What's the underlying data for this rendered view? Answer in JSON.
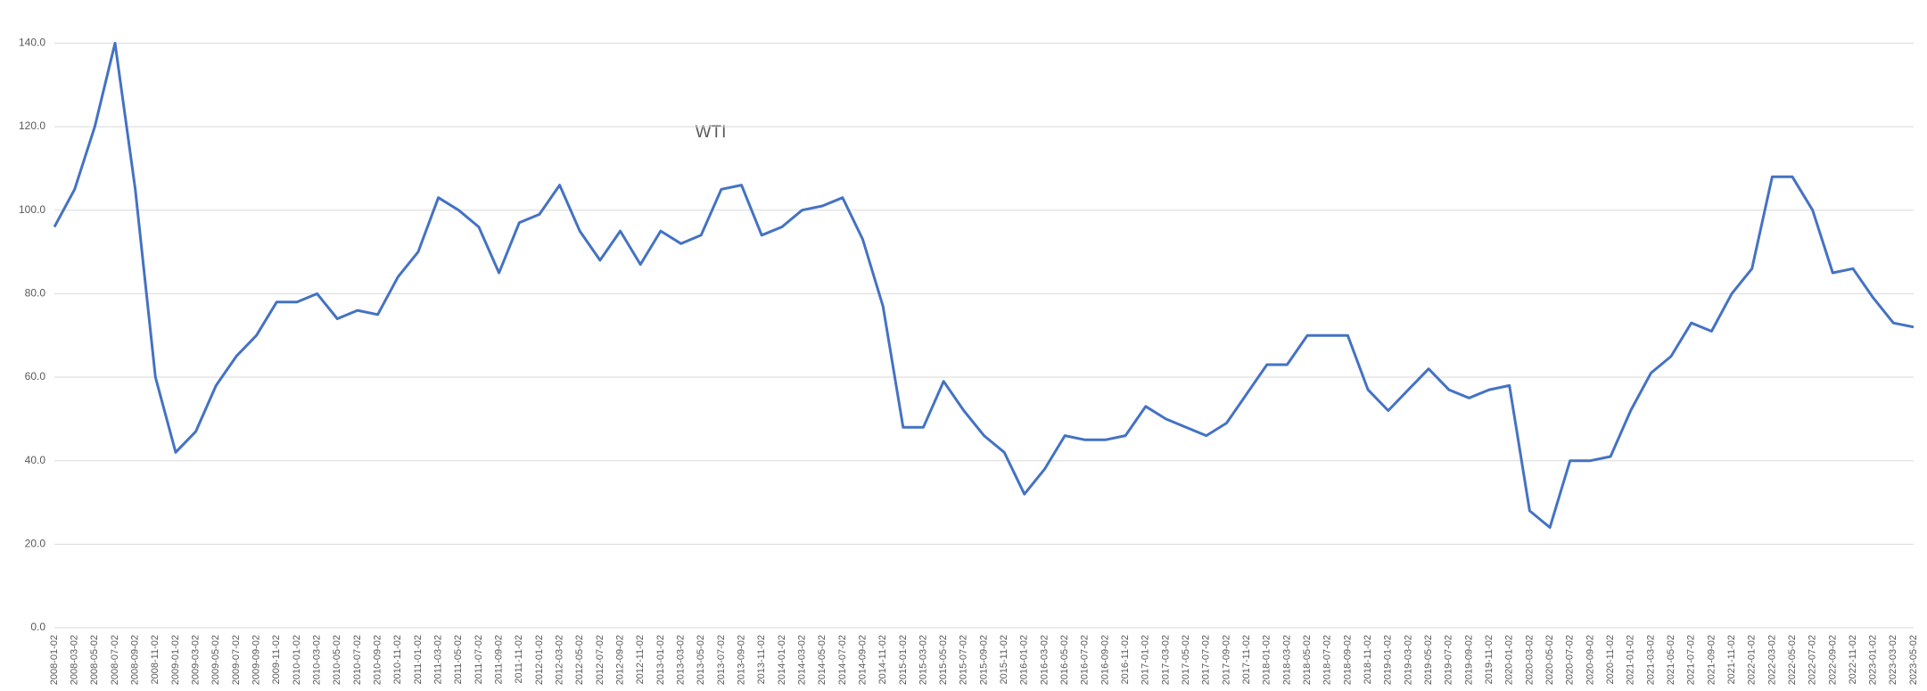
{
  "chart_data": {
    "type": "line",
    "title": "WTI",
    "categories": [
      "2008-01-02",
      "2008-03-02",
      "2008-05-02",
      "2008-07-02",
      "2008-09-02",
      "2008-11-02",
      "2009-01-02",
      "2009-03-02",
      "2009-05-02",
      "2009-07-02",
      "2009-09-02",
      "2009-11-02",
      "2010-01-02",
      "2010-03-02",
      "2010-05-02",
      "2010-07-02",
      "2010-09-02",
      "2010-11-02",
      "2011-01-02",
      "2011-03-02",
      "2011-05-02",
      "2011-07-02",
      "2011-09-02",
      "2011-11-02",
      "2012-01-02",
      "2012-03-02",
      "2012-05-02",
      "2012-07-02",
      "2012-09-02",
      "2012-11-02",
      "2013-01-02",
      "2013-03-02",
      "2013-05-02",
      "2013-07-02",
      "2013-09-02",
      "2013-11-02",
      "2014-01-02",
      "2014-03-02",
      "2014-05-02",
      "2014-07-02",
      "2014-09-02",
      "2014-11-02",
      "2015-01-02",
      "2015-03-02",
      "2015-05-02",
      "2015-07-02",
      "2015-09-02",
      "2015-11-02",
      "2016-01-02",
      "2016-03-02",
      "2016-05-02",
      "2016-07-02",
      "2016-09-02",
      "2016-11-02",
      "2017-01-02",
      "2017-03-02",
      "2017-05-02",
      "2017-07-02",
      "2017-09-02",
      "2017-11-02",
      "2018-01-02",
      "2018-03-02",
      "2018-05-02",
      "2018-07-02",
      "2018-09-02",
      "2018-11-02",
      "2019-01-02",
      "2019-03-02",
      "2019-05-02",
      "2019-07-02",
      "2019-09-02",
      "2019-11-02",
      "2020-01-02",
      "2020-03-02",
      "2020-05-02",
      "2020-07-02",
      "2020-09-02",
      "2020-11-02",
      "2021-01-02",
      "2021-03-02",
      "2021-05-02",
      "2021-07-02",
      "2021-09-02",
      "2021-11-02",
      "2022-01-02",
      "2022-03-02",
      "2022-05-02",
      "2022-07-02",
      "2022-09-02",
      "2022-11-02",
      "2023-01-02",
      "2023-03-02",
      "2023-05-02"
    ],
    "series": [
      {
        "name": "WTI",
        "color": "#4472c4",
        "values": [
          96,
          105,
          120,
          140,
          105,
          60,
          42,
          47,
          58,
          65,
          70,
          78,
          78,
          80,
          74,
          76,
          75,
          84,
          90,
          103,
          100,
          96,
          85,
          97,
          99,
          106,
          95,
          88,
          95,
          87,
          95,
          92,
          94,
          105,
          106,
          94,
          96,
          100,
          101,
          103,
          93,
          77,
          48,
          48,
          59,
          52,
          46,
          42,
          32,
          38,
          46,
          45,
          45,
          46,
          53,
          50,
          48,
          46,
          49,
          56,
          63,
          63,
          70,
          70,
          70,
          57,
          52,
          57,
          62,
          57,
          55,
          57,
          58,
          28,
          24,
          40,
          40,
          41,
          52,
          61,
          65,
          73,
          71,
          80,
          86,
          108,
          108,
          100,
          85,
          86,
          79,
          73,
          72
        ]
      }
    ],
    "ylim": [
      0,
      145
    ],
    "yticks": [
      {
        "value": 0,
        "label": "0.0"
      },
      {
        "value": 20,
        "label": "20.0"
      },
      {
        "value": 40,
        "label": "40.0"
      },
      {
        "value": 60,
        "label": "60.0"
      },
      {
        "value": 80,
        "label": "80.0"
      },
      {
        "value": 100,
        "label": "100.0"
      },
      {
        "value": 120,
        "label": "120.0"
      },
      {
        "value": 140,
        "label": "140.0"
      }
    ],
    "grid": true
  }
}
